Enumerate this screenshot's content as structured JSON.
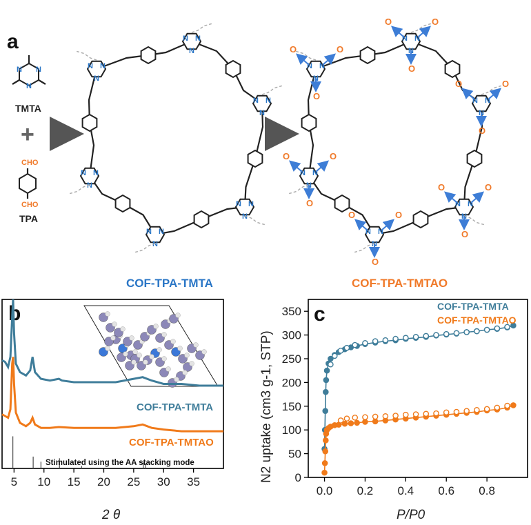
{
  "panel_a": {
    "label": "a",
    "tmta_label": "TMTA",
    "tpa_label": "TPA",
    "cho_top": "CHO",
    "cho_bottom": "CHO",
    "plus": "+",
    "cof1_label": "COF-TPA-TMTA",
    "cof2_label": "COF-TPA-TMTAO",
    "n_atom": "N",
    "o_atom": "O"
  },
  "panel_b": {
    "label": "b"
  },
  "panel_c": {
    "label": "c"
  },
  "colors": {
    "tmta_series": "#3f7d9a",
    "tmtao_series": "#f07a1a",
    "simulated": "#555555",
    "cof1_text": "#2a76c6",
    "cof2_text": "#f07a2a",
    "n_blue": "#2a76c6",
    "o_orange": "#f07a2a"
  },
  "chart_data": [
    {
      "type": "line",
      "panel": "b",
      "xlabel": "2 θ",
      "ylabel": "",
      "xlim": [
        3,
        40
      ],
      "xticks": [
        "5",
        "10",
        "15",
        "20",
        "25",
        "30",
        "35"
      ],
      "xtick_values": [
        5,
        10,
        15,
        20,
        25,
        30,
        35
      ],
      "series": [
        {
          "name": "COF-TPA-TMTA",
          "x": [
            3.0,
            3.5,
            4.0,
            4.4,
            4.7,
            4.85,
            5.0,
            5.3,
            6.0,
            7.0,
            7.7,
            8.1,
            8.5,
            9.5,
            11,
            12.5,
            13,
            15,
            18,
            20,
            22,
            25,
            26.5,
            28,
            30,
            33,
            36,
            40
          ],
          "y": [
            0.64,
            0.63,
            0.6,
            0.66,
            0.9,
            1.0,
            0.8,
            0.62,
            0.57,
            0.55,
            0.58,
            0.66,
            0.57,
            0.53,
            0.52,
            0.53,
            0.52,
            0.51,
            0.51,
            0.51,
            0.51,
            0.53,
            0.54,
            0.52,
            0.5,
            0.5,
            0.49,
            0.49
          ]
        },
        {
          "name": "COF-TPA-TMTAO",
          "x": [
            3.0,
            3.5,
            4.0,
            4.4,
            4.7,
            4.85,
            5.0,
            5.3,
            6.0,
            7.0,
            7.7,
            8.1,
            8.5,
            9.5,
            11,
            12.5,
            15,
            18,
            20,
            22,
            25,
            26.5,
            28,
            30,
            33,
            36,
            40
          ],
          "y": [
            0.32,
            0.31,
            0.3,
            0.35,
            0.62,
            0.66,
            0.5,
            0.33,
            0.27,
            0.25,
            0.27,
            0.3,
            0.26,
            0.24,
            0.24,
            0.245,
            0.24,
            0.24,
            0.24,
            0.24,
            0.25,
            0.26,
            0.24,
            0.23,
            0.22,
            0.22,
            0.22
          ]
        }
      ],
      "sticks": {
        "name": "Stimulated using the AA stacking mode",
        "x": [
          4.8,
          8.2,
          9.5,
          12.6,
          16.3,
          26.6,
          27.0
        ],
        "y": [
          0.19,
          0.07,
          0.04,
          0.06,
          0.015,
          0.035,
          0.03
        ]
      },
      "annotations": [
        "COF-TPA-TMTA",
        "COF-TPA-TMTAO",
        "Stimulated using the AA stacking mode"
      ]
    },
    {
      "type": "scatter",
      "panel": "c",
      "xlabel": "P/P0",
      "ylabel": "N2 uptake (cm3 g-1, STP)",
      "xlim": [
        -0.08,
        1.0
      ],
      "ylim": [
        0,
        375
      ],
      "xticks": [
        "0.0",
        "0.2",
        "0.4",
        "0.6",
        "0.8"
      ],
      "xtick_values": [
        0,
        0.2,
        0.4,
        0.6,
        0.8
      ],
      "yticks": [
        "0",
        "50",
        "100",
        "150",
        "200",
        "250",
        "300",
        "350"
      ],
      "ytick_values": [
        0,
        50,
        100,
        150,
        200,
        250,
        300,
        350
      ],
      "legend": "top-right",
      "series": [
        {
          "name": "COF-TPA-TMTA",
          "style": "adsorption-filled",
          "x": [
            0.0,
            0.002,
            0.004,
            0.006,
            0.008,
            0.012,
            0.02,
            0.03,
            0.05,
            0.07,
            0.1,
            0.13,
            0.16,
            0.2,
            0.25,
            0.3,
            0.35,
            0.4,
            0.45,
            0.5,
            0.55,
            0.6,
            0.65,
            0.7,
            0.75,
            0.8,
            0.85,
            0.9,
            0.93
          ],
          "y": [
            60,
            100,
            140,
            180,
            205,
            225,
            240,
            250,
            258,
            264,
            270,
            274,
            277,
            281,
            284,
            287,
            289,
            292,
            294,
            296,
            299,
            301,
            303,
            306,
            308,
            311,
            313,
            316,
            320
          ]
        },
        {
          "name": "COF-TPA-TMTA",
          "style": "desorption-open",
          "x": [
            0.03,
            0.05,
            0.08,
            0.11,
            0.15,
            0.2,
            0.25,
            0.3,
            0.35,
            0.4,
            0.45,
            0.5,
            0.55,
            0.6,
            0.65,
            0.7,
            0.75,
            0.8,
            0.85,
            0.9
          ],
          "y": [
            238,
            256,
            267,
            273,
            279,
            283,
            287,
            289,
            292,
            294,
            296,
            298,
            300,
            302,
            304,
            306,
            308,
            311,
            314,
            317
          ]
        },
        {
          "name": "COF-TPA-TMTAO",
          "style": "adsorption-filled",
          "x": [
            0.0,
            0.002,
            0.004,
            0.006,
            0.008,
            0.012,
            0.02,
            0.03,
            0.05,
            0.07,
            0.1,
            0.13,
            0.16,
            0.2,
            0.25,
            0.3,
            0.35,
            0.4,
            0.45,
            0.5,
            0.55,
            0.6,
            0.65,
            0.7,
            0.75,
            0.8,
            0.85,
            0.9,
            0.93
          ],
          "y": [
            10,
            30,
            55,
            78,
            92,
            100,
            104,
            107,
            110,
            111,
            113,
            114,
            115,
            117,
            118,
            120,
            122,
            124,
            126,
            128,
            130,
            132,
            134,
            136,
            138,
            141,
            143,
            147,
            152
          ]
        },
        {
          "name": "COF-TPA-TMTAO",
          "style": "desorption-open",
          "x": [
            0.08,
            0.11,
            0.15,
            0.2,
            0.25,
            0.3,
            0.35,
            0.4,
            0.45,
            0.5,
            0.55,
            0.6,
            0.65,
            0.7,
            0.75,
            0.8,
            0.85,
            0.9
          ],
          "y": [
            120,
            124,
            126,
            127,
            128,
            129,
            130,
            132,
            133,
            134,
            135,
            137,
            138,
            140,
            142,
            144,
            147,
            151
          ]
        }
      ]
    }
  ]
}
